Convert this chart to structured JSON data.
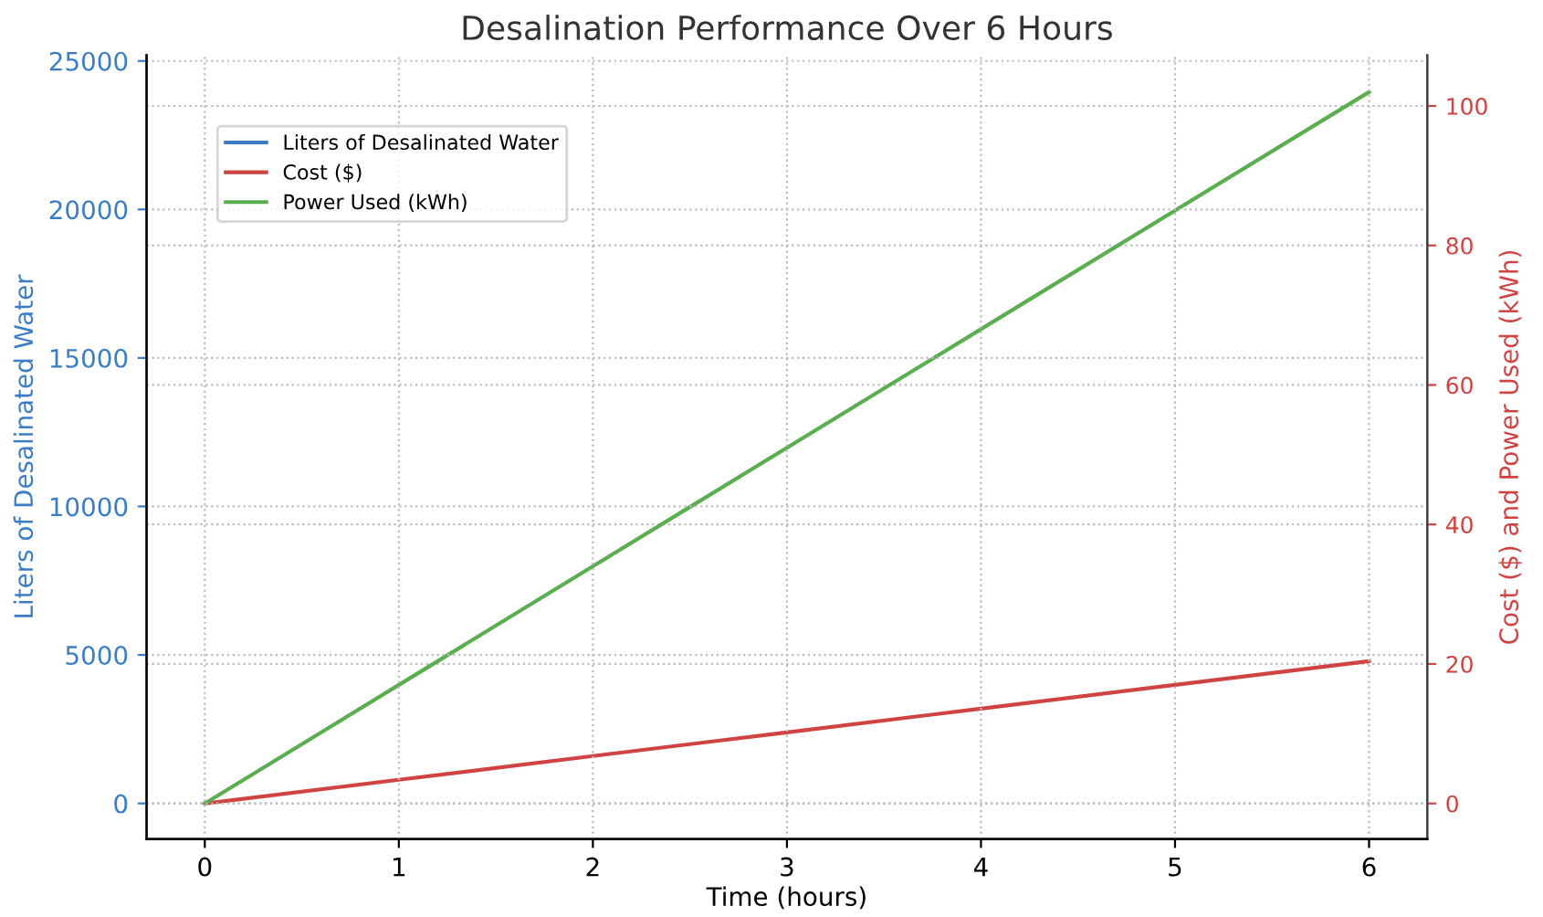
{
  "chart_data": {
    "type": "line",
    "title": "Desalination Performance Over 6 Hours",
    "xlabel": "Time (hours)",
    "ylabel": "Liters of Desalinated Water",
    "y2label": "Cost ($) and Power Used (kWh)",
    "x": [
      0,
      1,
      2,
      3,
      4,
      5,
      6
    ],
    "series": [
      {
        "name": "Liters of Desalinated Water",
        "color": "#3b7dc4",
        "values": [
          null,
          null,
          null,
          null,
          null,
          null,
          null
        ]
      },
      {
        "name": "Cost ($)",
        "color": "#d04343",
        "axis": "y2",
        "values": [
          0,
          3.4,
          6.8,
          10.2,
          13.6,
          17,
          20.4
        ]
      },
      {
        "name": "Power Used (kWh)",
        "color": "#5aae4f",
        "axis": "y2",
        "values": [
          0,
          17,
          34,
          51,
          68,
          85,
          102
        ]
      }
    ],
    "xlim": [
      -0.3,
      6.3
    ],
    "xticks": [
      0,
      1,
      2,
      3,
      4,
      5,
      6
    ],
    "ylim": [
      -1200,
      25200
    ],
    "yticks": [
      0,
      5000,
      10000,
      15000,
      20000,
      25000
    ],
    "y2lim": [
      -5.1,
      107.3
    ],
    "y2ticks": [
      0,
      20,
      40,
      60,
      80,
      100
    ],
    "grid": true,
    "legend": "top left",
    "line_style": "solid"
  }
}
